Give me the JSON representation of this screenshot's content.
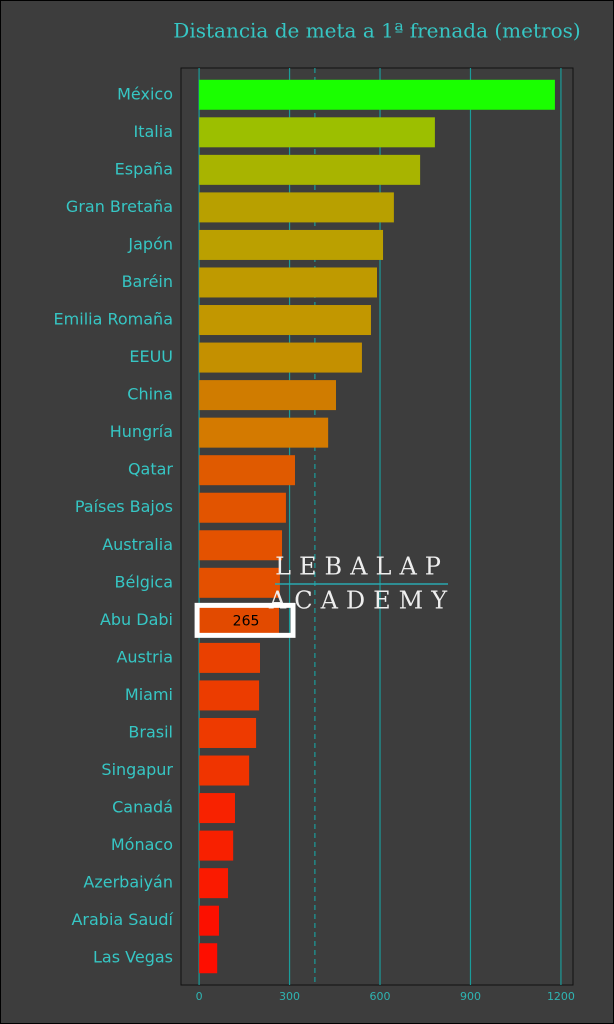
{
  "chart_data": {
    "type": "barh",
    "title": "Distancia de meta a 1ª frenada (metros)",
    "categories": [
      "México",
      "Italia",
      "España",
      "Gran Bretaña",
      "Japón",
      "Baréin",
      "Emilia Romaña",
      "EEUU",
      "China",
      "Hungría",
      "Qatar",
      "Países Bajos",
      "Australia",
      "Bélgica",
      "Abu Dabi",
      "Austria",
      "Miami",
      "Brasil",
      "Singapur",
      "Canadá",
      "Mónaco",
      "Azerbaiyán",
      "Arabia Saudí",
      "Las Vegas"
    ],
    "values": [
      1180,
      782,
      733,
      646,
      610,
      590,
      570,
      540,
      454,
      428,
      318,
      288,
      275,
      268,
      265,
      202,
      199,
      189,
      166,
      119,
      113,
      96,
      66,
      60
    ],
    "colors": [
      "#1aff00",
      "#9cbf00",
      "#a8b400",
      "#b8a000",
      "#bba000",
      "#bf9a00",
      "#c29700",
      "#c49000",
      "#d07c00",
      "#d47a00",
      "#e05a00",
      "#e25400",
      "#e45200",
      "#e45000",
      "#e24a00",
      "#ea4000",
      "#ec3c00",
      "#ee3a00",
      "#f03400",
      "#f82200",
      "#f82000",
      "#fa1a00",
      "#fc1000",
      "#fe0e00"
    ],
    "data_labels": [
      null,
      null,
      null,
      null,
      null,
      null,
      null,
      null,
      null,
      null,
      null,
      null,
      null,
      null,
      265,
      null,
      null,
      null,
      null,
      null,
      null,
      null,
      null,
      null
    ],
    "reference_line": 384,
    "xlim": [
      -60,
      1240
    ],
    "xticks": [
      0,
      300,
      600,
      900,
      1200
    ],
    "grid": true,
    "watermark": [
      "LEBALAP",
      "ACADEMY"
    ]
  }
}
